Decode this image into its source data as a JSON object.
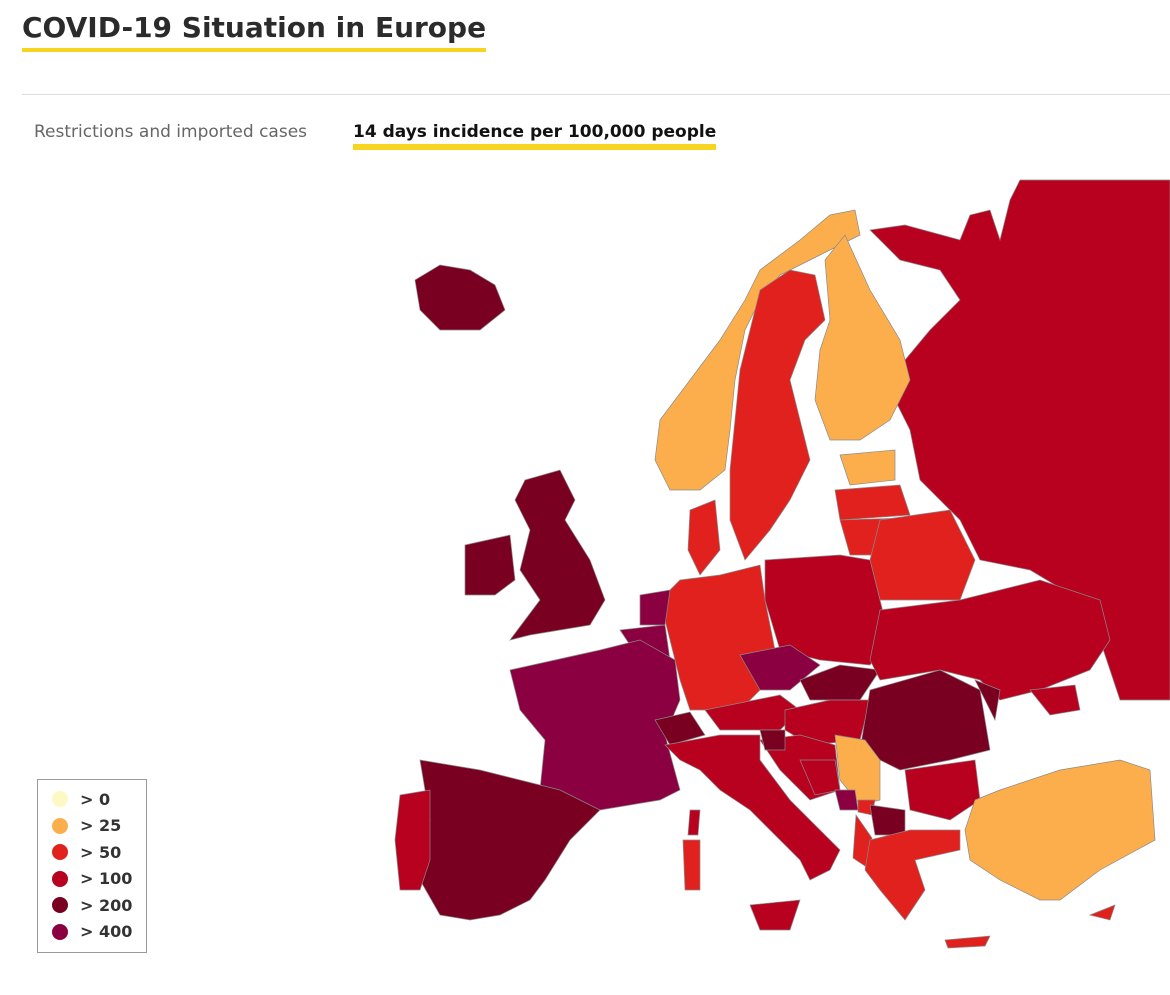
{
  "header": {
    "title": "COVID-19 Situation in Europe"
  },
  "tabs": [
    {
      "label": "Restrictions and imported cases",
      "active": false
    },
    {
      "label": "14 days incidence per 100,000 people",
      "active": true
    }
  ],
  "legend": {
    "items": [
      {
        "label": "> 0",
        "color": "#fdf9c4"
      },
      {
        "label": "> 25",
        "color": "#fdae4c"
      },
      {
        "label": "> 50",
        "color": "#e0211d"
      },
      {
        "label": "> 100",
        "color": "#b8001f"
      },
      {
        "label": "> 200",
        "color": "#7a0022"
      },
      {
        "label": "> 400",
        "color": "#8b0040"
      }
    ]
  }
}
